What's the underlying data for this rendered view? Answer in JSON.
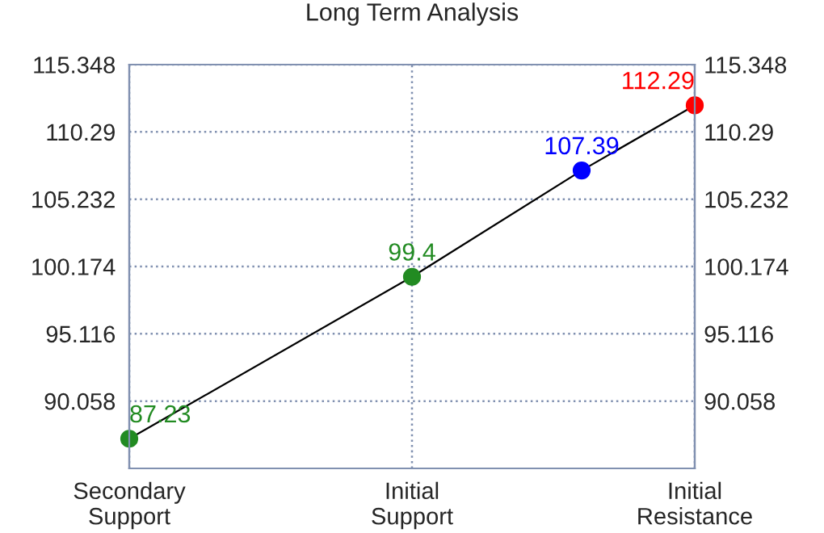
{
  "chart_data": {
    "type": "line",
    "title": "Long Term Analysis",
    "categories": [
      "Secondary\nSupport",
      null,
      null,
      null,
      null,
      "Initial\nSupport",
      null,
      null,
      null,
      null,
      "Initial\nResistance"
    ],
    "series": [
      {
        "color": "#000000",
        "colors": [
          "#228b22",
          null,
          null,
          null,
          null,
          "#228b22",
          null,
          null,
          "#0000ff",
          null,
          "#ff0000"
        ],
        "values": [
          87.23,
          null,
          null,
          null,
          null,
          99.4,
          null,
          null,
          107.39,
          null,
          112.29
        ]
      }
    ],
    "ylim": [
      85.0,
      115.348
    ],
    "yticks": [
      90.058,
      95.116,
      100.174,
      105.232,
      110.29,
      115.348
    ],
    "y2lim": [
      85.0,
      115.348
    ],
    "y2ticks": [
      90.058,
      95.116,
      100.174,
      105.232,
      110.29,
      115.348
    ],
    "grid": true,
    "marker": "circle",
    "line_style": "solid",
    "data_labels": true
  }
}
